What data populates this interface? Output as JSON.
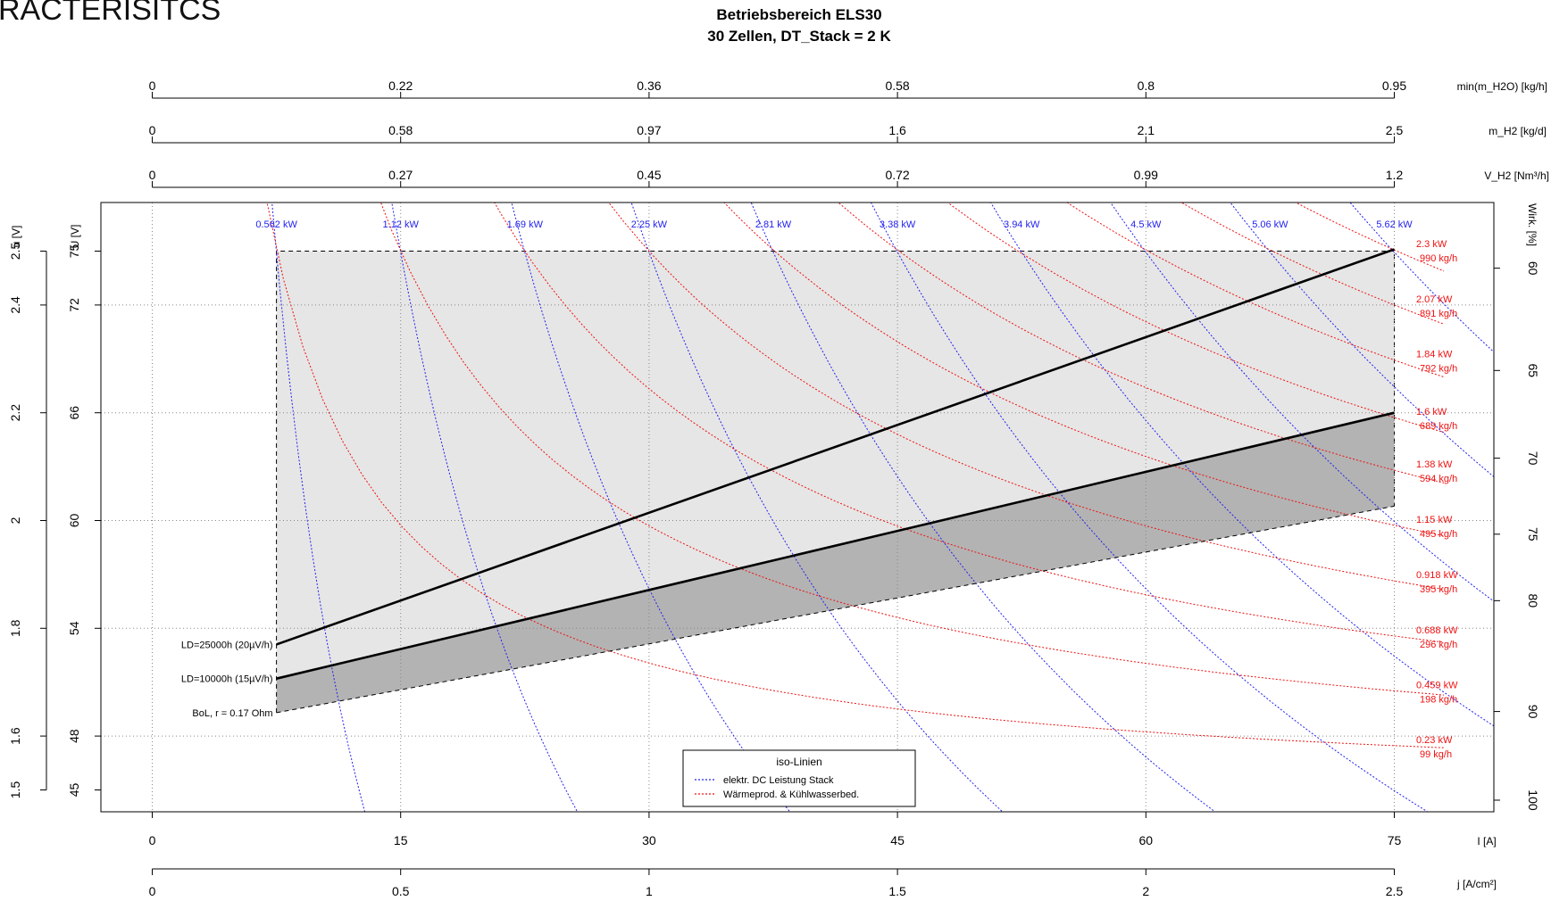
{
  "header": {
    "left_title": "RACTERISITCS",
    "title_line1": "Betriebsbereich ELS30",
    "title_line2": "30 Zellen, DT_Stack = 2 K"
  },
  "colors": {
    "power_iso": "#2222ee",
    "heat_iso": "#ee1111",
    "region_light": "#e6e6e6",
    "region_dark": "#b3b3b3",
    "axis": "#000000",
    "grid": "#888888"
  },
  "chart_data": {
    "type": "line",
    "x_axis": {
      "label": "I [A]",
      "min": 0,
      "max": 75,
      "ticks": [
        0,
        15,
        30,
        45,
        60,
        75
      ]
    },
    "y_axis": {
      "label": "U [V]",
      "min": 43.8,
      "max": 78.6,
      "ticks": [
        45,
        48,
        54,
        60,
        66,
        72,
        75
      ]
    },
    "secondary_axes": {
      "j": {
        "label": "j [A/cm²]",
        "ticks": [
          0,
          0.5,
          1,
          1.5,
          2,
          2.5
        ]
      },
      "v_h2": {
        "label": "V_H2 [Nm³/h]",
        "ticks": [
          0,
          0.27,
          0.45,
          0.72,
          0.99,
          1.2
        ]
      },
      "m_h2": {
        "label": "m_H2 [kg/d]",
        "ticks": [
          0,
          0.58,
          0.97,
          1.6,
          2.1,
          2.5
        ]
      },
      "m_h2o": {
        "label": "min(m_H2O) [kg/h]",
        "ticks": [
          0,
          0.22,
          0.36,
          0.58,
          0.8,
          0.95
        ]
      },
      "u_cell": {
        "label": "u [V]",
        "ticks": [
          1.5,
          1.6,
          1.8,
          2,
          2.2,
          2.4,
          2.5
        ]
      },
      "efficiency": {
        "label": "Wirk. [%]",
        "ticks": [
          60,
          65,
          70,
          75,
          80,
          90,
          100
        ]
      }
    },
    "grid": true,
    "operating_region": {
      "i_min": 7.5,
      "i_max": 75,
      "u_max": 75
    },
    "series": [
      {
        "name": "BoL, r = 0.17 Ohm",
        "style": "dashed",
        "x": [
          7.5,
          75
        ],
        "y": [
          49.3,
          60.8
        ]
      },
      {
        "name": "LD=10000h (15µV/h)",
        "style": "solid",
        "x": [
          7.5,
          75
        ],
        "y": [
          51.2,
          66.0
        ]
      },
      {
        "name": "LD=25000h (20µV/h)",
        "style": "solid",
        "x": [
          7.5,
          75
        ],
        "y": [
          53.1,
          75.1
        ]
      }
    ],
    "power_isolines": [
      {
        "label": "0.562 kW",
        "kw": 0.562
      },
      {
        "label": "1.12 kW",
        "kw": 1.124
      },
      {
        "label": "1.69 kW",
        "kw": 1.686
      },
      {
        "label": "2.25 kW",
        "kw": 2.248
      },
      {
        "label": "2.81 kW",
        "kw": 2.81
      },
      {
        "label": "3.38 kW",
        "kw": 3.372
      },
      {
        "label": "3.94 kW",
        "kw": 3.934
      },
      {
        "label": "4.5 kW",
        "kw": 4.496
      },
      {
        "label": "5.06 kW",
        "kw": 5.058
      },
      {
        "label": "5.62 kW",
        "kw": 5.62
      }
    ],
    "heat_isolines": [
      {
        "kw_label": "0.23 kW",
        "flow_label": "99 kg/h",
        "kw": 0.23
      },
      {
        "kw_label": "0.459 kW",
        "flow_label": "198 kg/h",
        "kw": 0.459
      },
      {
        "kw_label": "0.688 kW",
        "flow_label": "296 kg/h",
        "kw": 0.688
      },
      {
        "kw_label": "0.918 kW",
        "flow_label": "395 kg/h",
        "kw": 0.918
      },
      {
        "kw_label": "1.15 kW",
        "flow_label": "495 kg/h",
        "kw": 1.15
      },
      {
        "kw_label": "1.38 kW",
        "flow_label": "594 kg/h",
        "kw": 1.38
      },
      {
        "kw_label": "1.6 kW",
        "flow_label": "689 kg/h",
        "kw": 1.6
      },
      {
        "kw_label": "1.84 kW",
        "flow_label": "792 kg/h",
        "kw": 1.84
      },
      {
        "kw_label": "2.07 kW",
        "flow_label": "891 kg/h",
        "kw": 2.07
      },
      {
        "kw_label": "2.3 kW",
        "flow_label": "990 kg/h",
        "kw": 2.3
      }
    ],
    "legend": {
      "title": "iso-Linien",
      "position": "bottom-center",
      "entries": [
        {
          "label": "elektr. DC Leistung Stack",
          "color": "#2222ee"
        },
        {
          "label": "Wärmeprod. & Kühlwasserbed.",
          "color": "#ee1111"
        }
      ]
    }
  }
}
